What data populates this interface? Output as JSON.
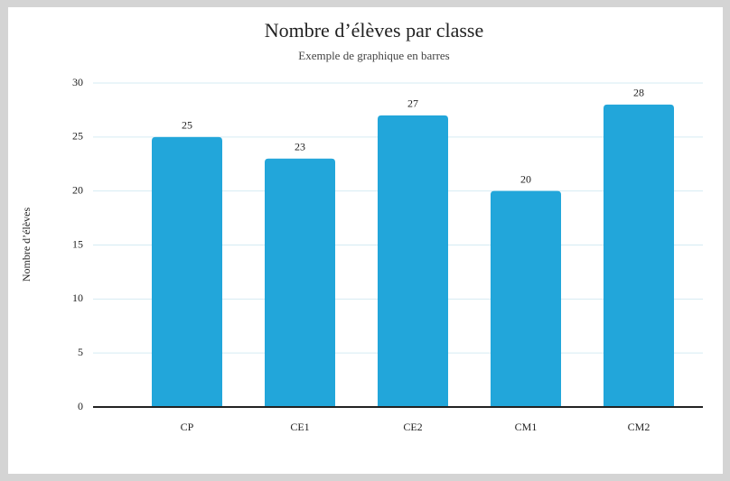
{
  "chart_data": {
    "type": "bar",
    "title": "Nombre d’élèves par classe",
    "subtitle": "Exemple de graphique en barres",
    "y_label": "Nombre d’élèves",
    "categories": [
      "CP",
      "CE1",
      "CE2",
      "CM1",
      "CM2"
    ],
    "values": [
      25,
      23,
      27,
      20,
      28
    ],
    "color": "#22a6da",
    "ylim": [
      0,
      30
    ],
    "yticks": [
      0,
      5,
      10,
      15,
      20,
      25,
      30
    ],
    "grid": true
  }
}
